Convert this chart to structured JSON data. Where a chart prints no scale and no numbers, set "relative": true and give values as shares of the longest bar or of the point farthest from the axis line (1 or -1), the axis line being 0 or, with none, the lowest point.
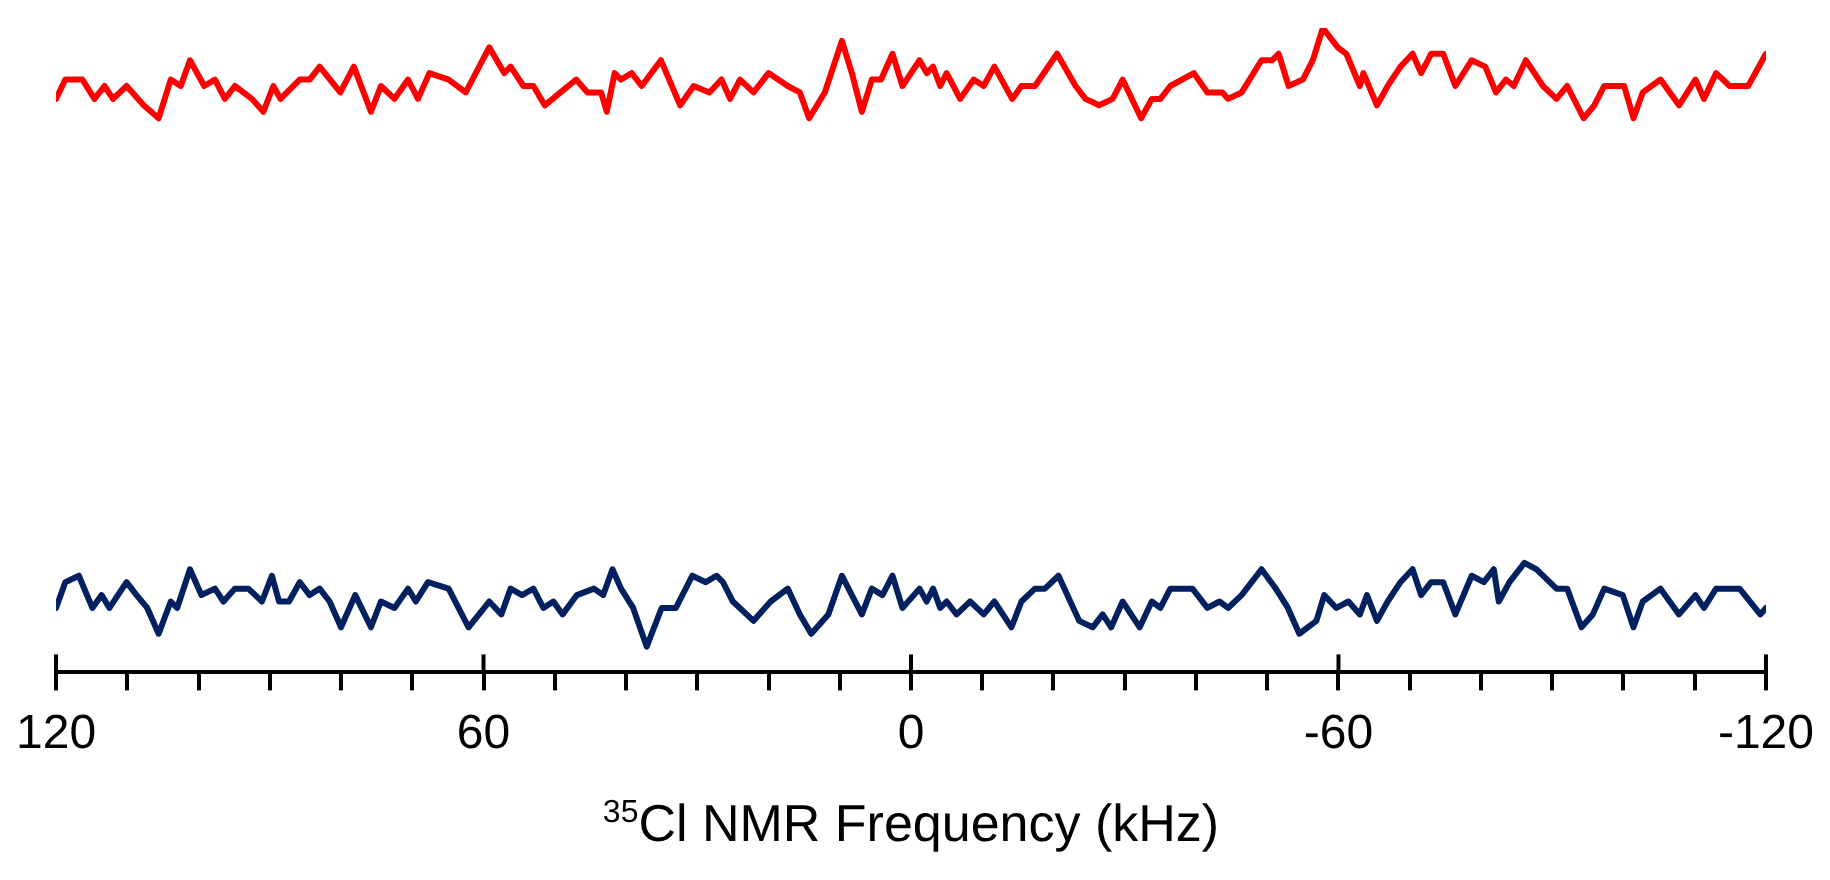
{
  "chart_data": {
    "type": "line",
    "xlabel": "$^{35}$Cl NMR Frequency (kHz)",
    "relative": true,
    "grid": false,
    "legend": false,
    "marker": "none",
    "line_style": "solid",
    "tick_labels": "x",
    "xlim": [
      120,
      -120
    ],
    "xticks": [
      120,
      {
        "value": 110,
        "label": null
      },
      {
        "value": 100,
        "label": null
      },
      {
        "value": 90,
        "label": null
      },
      {
        "value": 80,
        "label": null
      },
      {
        "value": 70,
        "label": null
      },
      60,
      {
        "value": 50,
        "label": null
      },
      {
        "value": 40,
        "label": null
      },
      {
        "value": 30,
        "label": null
      },
      {
        "value": 20,
        "label": null
      },
      {
        "value": 10,
        "label": null
      },
      0,
      {
        "value": -10,
        "label": null
      },
      {
        "value": -20,
        "label": null
      },
      {
        "value": -30,
        "label": null
      },
      {
        "value": -40,
        "label": null
      },
      {
        "value": -50,
        "label": null
      },
      -60,
      {
        "value": -70,
        "label": null
      },
      {
        "value": -80,
        "label": null
      },
      {
        "value": -90,
        "label": null
      },
      {
        "value": -100,
        "label": null
      },
      {
        "value": -110,
        "label": null
      },
      -120
    ],
    "series": [
      {
        "color": "#ff0000",
        "x": [
          120.0,
          118.7,
          116.3,
          114.6,
          113.2,
          112.0,
          110.1,
          107.7,
          105.6,
          103.9,
          102.5,
          101.2,
          99.2,
          97.7,
          96.3,
          94.9,
          92.5,
          90.9,
          89.5,
          88.5,
          85.8,
          84.4,
          83.0,
          80.1,
          78.2,
          75.8,
          74.4,
          72.5,
          70.6,
          69.2,
          67.6,
          64.9,
          62.5,
          59.2,
          57.1,
          56.2,
          54.4,
          53.0,
          51.4,
          49.2,
          47.0,
          45.4,
          43.5,
          42.7,
          41.6,
          40.7,
          39.2,
          37.8,
          35.1,
          32.4,
          30.5,
          28.3,
          26.6,
          25.4,
          24.0,
          22.1,
          20.0,
          17.3,
          15.6,
          14.3,
          12.1,
          9.7,
          8.3,
          6.9,
          5.5,
          4.2,
          2.6,
          1.2,
          -1.2,
          -2.2,
          -3.1,
          -4.1,
          -5.0,
          -6.9,
          -8.8,
          -10.2,
          -11.7,
          -14.2,
          -15.5,
          -17.4,
          -20.5,
          -23.1,
          -24.5,
          -26.4,
          -28.3,
          -29.7,
          -32.3,
          -33.8,
          -35.0,
          -36.4,
          -39.7,
          -41.6,
          -43.7,
          -44.5,
          -46.4,
          -49.2,
          -50.7,
          -51.6,
          -53.0,
          -55.0,
          -56.4,
          -57.8,
          -59.9,
          -61.1,
          -63.0,
          -63.5,
          -65.4,
          -66.9,
          -68.7,
          -70.4,
          -71.6,
          -73.0,
          -74.7,
          -76.4,
          -78.7,
          -80.6,
          -82.1,
          -83.5,
          -84.6,
          -86.3,
          -88.7,
          -90.6,
          -92.1,
          -94.4,
          -95.9,
          -97.3,
          -100.1,
          -101.4,
          -102.7,
          -105.2,
          -107.8,
          -110.1,
          -111.3,
          -113.0,
          -114.9,
          -117.5,
          -120.0
        ],
        "values": [
          0.89,
          0.92,
          0.92,
          0.89,
          0.91,
          0.89,
          0.91,
          0.88,
          0.86,
          0.92,
          0.91,
          0.95,
          0.91,
          0.92,
          0.89,
          0.91,
          0.89,
          0.87,
          0.91,
          0.89,
          0.92,
          0.92,
          0.94,
          0.9,
          0.94,
          0.87,
          0.91,
          0.89,
          0.92,
          0.89,
          0.93,
          0.92,
          0.9,
          0.97,
          0.93,
          0.94,
          0.91,
          0.91,
          0.88,
          0.9,
          0.92,
          0.9,
          0.9,
          0.87,
          0.93,
          0.92,
          0.93,
          0.91,
          0.95,
          0.88,
          0.91,
          0.9,
          0.92,
          0.89,
          0.92,
          0.9,
          0.93,
          0.91,
          0.9,
          0.86,
          0.9,
          0.98,
          0.93,
          0.87,
          0.92,
          0.92,
          0.96,
          0.91,
          0.95,
          0.93,
          0.94,
          0.91,
          0.93,
          0.89,
          0.92,
          0.91,
          0.94,
          0.89,
          0.91,
          0.91,
          0.96,
          0.91,
          0.89,
          0.88,
          0.89,
          0.92,
          0.86,
          0.89,
          0.89,
          0.91,
          0.93,
          0.9,
          0.9,
          0.89,
          0.9,
          0.95,
          0.95,
          0.96,
          0.91,
          0.92,
          0.95,
          1.0,
          0.97,
          0.96,
          0.91,
          0.93,
          0.88,
          0.91,
          0.94,
          0.96,
          0.93,
          0.96,
          0.96,
          0.91,
          0.95,
          0.94,
          0.9,
          0.92,
          0.91,
          0.95,
          0.91,
          0.89,
          0.91,
          0.86,
          0.88,
          0.91,
          0.91,
          0.86,
          0.9,
          0.92,
          0.88,
          0.92,
          0.89,
          0.93,
          0.91,
          0.91,
          0.96
        ]
      },
      {
        "color": "#002060",
        "x": [
          120.0,
          118.7,
          116.8,
          114.9,
          113.6,
          112.5,
          110.1,
          108.7,
          107.2,
          105.6,
          103.9,
          103.0,
          101.2,
          99.6,
          97.7,
          96.5,
          94.9,
          93.0,
          91.1,
          89.7,
          88.7,
          87.3,
          85.8,
          84.4,
          83.0,
          81.6,
          80.0,
          78.0,
          75.8,
          74.4,
          72.5,
          70.6,
          69.5,
          67.8,
          64.9,
          62.1,
          59.2,
          57.5,
          56.2,
          54.6,
          53.0,
          51.6,
          50.2,
          48.9,
          46.9,
          44.5,
          43.2,
          41.9,
          40.7,
          39.0,
          37.1,
          35.0,
          33.0,
          30.7,
          28.8,
          27.3,
          26.4,
          25.0,
          22.1,
          19.7,
          17.3,
          15.6,
          14.0,
          11.6,
          9.7,
          8.3,
          6.9,
          5.5,
          4.0,
          2.6,
          1.2,
          -1.2,
          -2.2,
          -3.1,
          -4.1,
          -5.0,
          -6.4,
          -8.3,
          -10.2,
          -11.7,
          -14.1,
          -15.5,
          -17.4,
          -18.8,
          -20.7,
          -23.6,
          -25.5,
          -26.9,
          -28.1,
          -29.7,
          -32.1,
          -33.8,
          -35.0,
          -36.4,
          -39.5,
          -41.6,
          -43.3,
          -44.5,
          -46.4,
          -49.2,
          -51.2,
          -52.9,
          -54.5,
          -56.9,
          -58.0,
          -59.7,
          -61.4,
          -63.0,
          -64.0,
          -65.4,
          -66.9,
          -68.7,
          -70.4,
          -71.6,
          -73.0,
          -74.7,
          -76.4,
          -78.7,
          -80.4,
          -81.8,
          -82.5,
          -84.0,
          -86.1,
          -87.8,
          -90.6,
          -92.1,
          -94.1,
          -95.7,
          -97.3,
          -99.9,
          -101.4,
          -102.7,
          -105.2,
          -107.8,
          -110.1,
          -111.3,
          -113.0,
          -116.3,
          -119.2,
          -120.0
        ],
        "values": [
          0.1,
          0.14,
          0.15,
          0.1,
          0.12,
          0.1,
          0.14,
          0.12,
          0.1,
          0.06,
          0.11,
          0.1,
          0.16,
          0.12,
          0.13,
          0.11,
          0.13,
          0.13,
          0.11,
          0.15,
          0.11,
          0.11,
          0.14,
          0.12,
          0.13,
          0.11,
          0.07,
          0.12,
          0.07,
          0.11,
          0.1,
          0.13,
          0.11,
          0.14,
          0.13,
          0.07,
          0.11,
          0.09,
          0.13,
          0.12,
          0.13,
          0.1,
          0.11,
          0.09,
          0.12,
          0.13,
          0.12,
          0.16,
          0.13,
          0.1,
          0.04,
          0.1,
          0.1,
          0.15,
          0.14,
          0.15,
          0.14,
          0.11,
          0.08,
          0.11,
          0.13,
          0.09,
          0.06,
          0.09,
          0.15,
          0.12,
          0.09,
          0.13,
          0.12,
          0.15,
          0.1,
          0.13,
          0.11,
          0.13,
          0.1,
          0.11,
          0.09,
          0.11,
          0.09,
          0.11,
          0.07,
          0.11,
          0.13,
          0.13,
          0.15,
          0.08,
          0.07,
          0.09,
          0.07,
          0.11,
          0.07,
          0.11,
          0.1,
          0.13,
          0.13,
          0.1,
          0.11,
          0.1,
          0.12,
          0.16,
          0.13,
          0.1,
          0.06,
          0.08,
          0.12,
          0.1,
          0.11,
          0.09,
          0.12,
          0.08,
          0.11,
          0.14,
          0.16,
          0.12,
          0.14,
          0.14,
          0.09,
          0.15,
          0.14,
          0.16,
          0.11,
          0.14,
          0.17,
          0.16,
          0.13,
          0.13,
          0.07,
          0.09,
          0.13,
          0.12,
          0.07,
          0.11,
          0.13,
          0.09,
          0.12,
          0.1,
          0.13,
          0.13,
          0.09,
          0.1
        ]
      }
    ]
  }
}
